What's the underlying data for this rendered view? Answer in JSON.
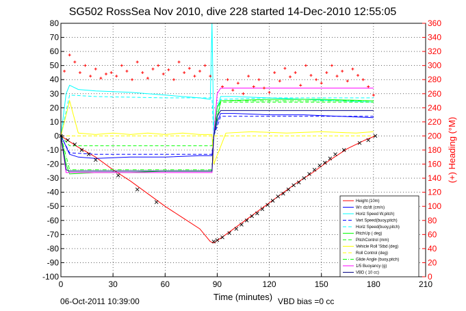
{
  "chart_data": {
    "type": "line",
    "title": "SG502 RossSea Nov 2010, dive 228 started 14-Dec-2010 12:55:05",
    "xlabel": "Time (minutes)",
    "ylabel_right": "(+) Heading (°M)",
    "xlim": [
      0,
      210
    ],
    "ylim": [
      -100,
      80
    ],
    "ylim_right": [
      0,
      360
    ],
    "x_ticks": [
      0,
      30,
      60,
      90,
      120,
      150,
      180,
      210
    ],
    "y_ticks": [
      -100,
      -90,
      -80,
      -70,
      -60,
      -50,
      -40,
      -30,
      -20,
      -10,
      0,
      10,
      20,
      30,
      40,
      50,
      60,
      70,
      80
    ],
    "y_ticks_right": [
      0,
      20,
      40,
      60,
      80,
      100,
      120,
      140,
      160,
      180,
      200,
      220,
      240,
      260,
      280,
      300,
      320,
      340,
      360
    ],
    "grid": true,
    "legend_position": "bottom-right",
    "footer_left": "06-Oct-2011 10:39:00",
    "footer_right": "VBD bias =0 cc",
    "series": [
      {
        "name": "Height (10m)",
        "color": "#ff0000",
        "style": "solid",
        "x": [
          0,
          10,
          20,
          30,
          40,
          50,
          60,
          70,
          80,
          86,
          88,
          95,
          105,
          115,
          125,
          135,
          145,
          155,
          165,
          175,
          181
        ],
        "y": [
          0,
          -8,
          -15,
          -24,
          -32,
          -41,
          -50,
          -58,
          -66,
          -75,
          -76,
          -70,
          -61,
          -52,
          -43,
          -34,
          -26,
          -17,
          -9,
          -3,
          0
        ]
      },
      {
        "name": "W= dz/dt (cm/s)",
        "color": "#0000ff",
        "style": "solid",
        "x": [
          0,
          2,
          5,
          10,
          20,
          40,
          60,
          80,
          87,
          88,
          90,
          92,
          100,
          120,
          140,
          160,
          180
        ],
        "y": [
          0,
          -5,
          -13,
          -15,
          -16,
          -15,
          -15,
          -14,
          -14,
          0,
          10,
          16,
          16,
          15,
          15,
          14,
          13
        ]
      },
      {
        "name": "Horiz Speed W,pitch)",
        "color": "#00ffff",
        "style": "solid",
        "x": [
          0,
          3,
          5,
          10,
          20,
          40,
          60,
          80,
          86,
          87,
          88,
          90,
          92,
          100,
          120,
          140,
          160,
          180
        ],
        "y": [
          0,
          30,
          36,
          33,
          32,
          31,
          29,
          27,
          26,
          80,
          0,
          20,
          28,
          28,
          27,
          26,
          25,
          24
        ]
      },
      {
        "name": "Vert Speed(buoy,pitch)",
        "color": "#0000ff",
        "style": "dashed",
        "x": [
          0,
          5,
          20,
          60,
          87,
          88,
          92,
          120,
          150,
          180
        ],
        "y": [
          0,
          -12,
          -13,
          -13,
          -13,
          0,
          14,
          14,
          14,
          14
        ]
      },
      {
        "name": "Horiz Speed(buoy,pitch)",
        "color": "#00ffff",
        "style": "dashed",
        "x": [
          0,
          5,
          20,
          60,
          87,
          88,
          92,
          120,
          150,
          180
        ],
        "y": [
          0,
          29,
          28,
          27,
          27,
          0,
          26,
          27,
          27,
          27
        ]
      },
      {
        "name": "PitchUp ( deg)",
        "color": "#00ff00",
        "style": "solid",
        "x": [
          0,
          3,
          5,
          20,
          40,
          60,
          80,
          87,
          88,
          90,
          92,
          120,
          150,
          180
        ],
        "y": [
          0,
          -20,
          -27,
          -26,
          -26,
          -25,
          -25,
          -25,
          0,
          20,
          25,
          26,
          26,
          25
        ]
      },
      {
        "name": "PitchControl (mm)",
        "color": "#00ff00",
        "style": "dashed",
        "x": [
          0,
          5,
          87,
          88,
          92,
          180
        ],
        "y": [
          0,
          -7,
          -7,
          0,
          24,
          24
        ]
      },
      {
        "name": "Vehicle Roll 'Stbd (deg)",
        "color": "#ffff00",
        "style": "solid",
        "x": [
          0,
          5,
          10,
          20,
          30,
          40,
          50,
          60,
          70,
          80,
          87,
          88,
          95,
          110,
          130,
          150,
          170,
          180
        ],
        "y": [
          0,
          25,
          2,
          1,
          2,
          1,
          2,
          1,
          2,
          1,
          1,
          -20,
          2,
          3,
          2,
          3,
          2,
          3
        ]
      },
      {
        "name": "Roll Control (deg)",
        "color": "#ffff00",
        "style": "dashed",
        "x": [
          0,
          5,
          87,
          88,
          92,
          180
        ],
        "y": [
          0,
          0,
          0,
          0,
          0,
          0
        ]
      },
      {
        "name": "Glide Angle (buoy,pitch)",
        "color": "#00ff00",
        "style": "dashdot",
        "x": [
          0,
          5,
          87,
          88,
          92,
          180
        ],
        "y": [
          0,
          -24,
          -24,
          0,
          25,
          25
        ]
      },
      {
        "name": "1/5 Buoyancy (g)",
        "color": "#ff00ff",
        "style": "solid",
        "x": [
          0,
          3,
          5,
          87,
          88,
          90,
          92,
          180
        ],
        "y": [
          0,
          -26,
          -26,
          -26,
          0,
          30,
          34,
          34
        ]
      },
      {
        "name": "VBD ( 10 cc)",
        "color": "#000080",
        "style": "solid",
        "x": [
          0,
          3,
          5,
          87,
          88,
          90,
          92,
          180
        ],
        "y": [
          0,
          -24,
          -25,
          -25,
          0,
          14,
          18,
          18
        ]
      }
    ],
    "heading": {
      "color": "#ff0000",
      "axis": "right",
      "marker": "+",
      "x": [
        2,
        5,
        8,
        11,
        14,
        17,
        20,
        23,
        26,
        29,
        32,
        35,
        38,
        41,
        44,
        47,
        50,
        53,
        56,
        59,
        62,
        65,
        68,
        71,
        74,
        77,
        80,
        83,
        86,
        93,
        96,
        99,
        102,
        105,
        108,
        111,
        114,
        117,
        120,
        123,
        126,
        129,
        132,
        135,
        138,
        141,
        144,
        147,
        150,
        153,
        156,
        159,
        162,
        165,
        168,
        171,
        174,
        177,
        180
      ],
      "y": [
        292,
        315,
        305,
        290,
        300,
        285,
        295,
        282,
        288,
        290,
        285,
        300,
        292,
        280,
        305,
        290,
        282,
        295,
        300,
        288,
        294,
        280,
        305,
        290,
        296,
        285,
        292,
        300,
        285,
        270,
        280,
        265,
        275,
        260,
        285,
        270,
        280,
        268,
        262,
        290,
        278,
        296,
        284,
        290,
        272,
        300,
        286,
        280,
        275,
        290,
        300,
        285,
        292,
        278,
        295,
        286,
        280,
        270,
        258
      ]
    },
    "trajectory_markers": {
      "color": "#000000",
      "marker": "x",
      "x": [
        0,
        4,
        8,
        12,
        16,
        20,
        33,
        44,
        55,
        88,
        90,
        93,
        97,
        101,
        104,
        107,
        110,
        113,
        116,
        119,
        122,
        125,
        128,
        131,
        134,
        137,
        140,
        143,
        146,
        149,
        152,
        155,
        158,
        163,
        172,
        177,
        181
      ],
      "y": [
        0,
        -3,
        -6,
        -10,
        -13,
        -17,
        -28,
        -38,
        -47,
        -75,
        -74,
        -72,
        -69,
        -66,
        -63,
        -60,
        -57,
        -55,
        -52,
        -49,
        -46,
        -43,
        -41,
        -38,
        -35,
        -33,
        -30,
        -27,
        -24,
        -21,
        -19,
        -16,
        -13,
        -10,
        -5,
        -3,
        0
      ]
    }
  }
}
